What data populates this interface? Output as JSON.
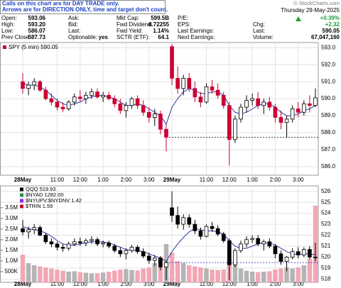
{
  "notice": [
    "Calls on this chart are for DAY TRADE only.",
    "Arrows are for DIRECTION ONLY, time and target don't count."
  ],
  "source": "© StockCharts.com",
  "date": "Thursday 29-May-2025",
  "quote": {
    "rows": [
      [
        {
          "label": "Open:",
          "value": "593.06"
        },
        {
          "label": "Ask:"
        },
        {
          "label": "Mkt Cap:",
          "value": "599.5B"
        },
        {
          "label": "P/E:"
        },
        {
          "value": "+0.39%"
        }
      ],
      [
        {
          "label": "High:",
          "value": "593.20"
        },
        {
          "label": "Bid:"
        },
        {
          "label": "Fwd Dividend:",
          "value": "6.72255"
        },
        {
          "label": "EPS:"
        },
        {
          "label": "Chg:",
          "value": "+2.32"
        }
      ],
      [
        {
          "label": "Low:",
          "value": "586.07"
        },
        {
          "label": "Last:"
        },
        {
          "label": "Fwd Yield:",
          "value": "1.14%"
        },
        {
          "label": "Last Earnings:"
        },
        {
          "label": "Last:",
          "value": "590.05"
        }
      ],
      [
        {
          "label": "Prev Close:",
          "value": "587.73"
        },
        {
          "label": "Optionable:",
          "value": "yes"
        },
        {
          "label": "SCTR (ETF):",
          "value": "64.1"
        },
        {
          "label": "Next Earnings:"
        },
        {
          "label": "Volume:",
          "value": "67,047,160"
        }
      ]
    ]
  },
  "chart_data": [
    {
      "type": "candlestick",
      "legend": "SPY (5 min) 590.05",
      "legend_color": "#cc0033",
      "categories": [
        "28May",
        null,
        null,
        null,
        null,
        null,
        "11:00",
        null,
        null,
        null,
        "12:00",
        null,
        null,
        null,
        "1:00",
        null,
        null,
        null,
        "2:00",
        null,
        null,
        null,
        "3:00",
        null,
        null,
        null,
        "29May",
        null,
        null,
        null,
        null,
        null,
        "11:00",
        null,
        null,
        null,
        "12:00",
        null,
        null,
        null,
        "1:00",
        null,
        null,
        null,
        "2:00",
        null,
        null,
        null,
        "3:00",
        null,
        null,
        null
      ],
      "ylim": [
        585.5,
        593.3
      ],
      "yticks": [
        {
          "value": 586,
          "label": "586.0"
        },
        {
          "value": 587,
          "label": "587.0"
        },
        {
          "value": 588,
          "label": "588.0"
        },
        {
          "value": 589,
          "label": "589.0"
        },
        {
          "value": 590,
          "label": "590.0"
        },
        {
          "value": 591,
          "label": "591.0"
        },
        {
          "value": 592,
          "label": "592.0"
        },
        {
          "value": 593,
          "label": "593.0"
        }
      ],
      "grid": true,
      "up_color": "#000000",
      "down_color": "#cc0033",
      "open": [
        591.0,
        590.6,
        590.8,
        591.0,
        590.5,
        590.0,
        589.8,
        589.5,
        589.4,
        589.8,
        590.1,
        590.0,
        590.2,
        590.4,
        590.1,
        590.2,
        590.0,
        589.7,
        589.3,
        589.6,
        590.0,
        589.6,
        589.2,
        588.9,
        589.1,
        588.2,
        593.06,
        591.2,
        590.6,
        591.2,
        590.6,
        590.1,
        589.8,
        590.7,
        590.5,
        590.2,
        589.6,
        587.6,
        588.8,
        589.5,
        589.9,
        590.0,
        589.6,
        589.8,
        589.5,
        588.9,
        588.6,
        588.8,
        589.4,
        589.2,
        589.7,
        589.6
      ],
      "high": [
        591.5,
        591.0,
        591.2,
        591.1,
        590.7,
        590.3,
        590.0,
        589.8,
        589.9,
        590.3,
        590.5,
        590.4,
        590.6,
        590.6,
        590.4,
        590.4,
        590.2,
        590.0,
        589.8,
        590.1,
        590.2,
        589.9,
        589.5,
        589.4,
        589.3,
        588.5,
        593.2,
        591.9,
        591.4,
        591.5,
        591.0,
        590.4,
        590.9,
        591.1,
        590.9,
        590.4,
        589.8,
        589.0,
        589.7,
        590.2,
        590.3,
        590.4,
        590.0,
        590.1,
        589.7,
        589.3,
        589.0,
        589.6,
        589.8,
        589.9,
        590.2,
        590.6
      ],
      "low": [
        590.3,
        590.2,
        590.5,
        590.4,
        589.9,
        589.6,
        589.3,
        589.2,
        589.3,
        589.6,
        589.8,
        589.7,
        590.0,
        590.0,
        589.8,
        589.9,
        589.5,
        589.1,
        588.9,
        589.4,
        589.4,
        589.0,
        588.6,
        588.4,
        587.9,
        586.9,
        590.8,
        590.3,
        590.2,
        590.4,
        589.8,
        589.5,
        589.7,
        590.3,
        590.0,
        589.4,
        586.07,
        587.4,
        588.6,
        589.2,
        589.6,
        589.4,
        589.1,
        589.3,
        588.6,
        588.2,
        587.7,
        588.6,
        588.9,
        589.0,
        589.2,
        589.5
      ],
      "close": [
        590.6,
        590.8,
        591.0,
        590.5,
        590.0,
        589.8,
        589.5,
        589.4,
        589.8,
        590.1,
        590.0,
        590.2,
        590.4,
        590.1,
        590.2,
        590.0,
        589.7,
        589.3,
        589.6,
        590.0,
        589.6,
        589.2,
        588.9,
        589.1,
        588.2,
        587.73,
        591.2,
        590.6,
        591.2,
        590.6,
        590.1,
        589.8,
        590.7,
        590.5,
        590.2,
        589.6,
        587.6,
        588.8,
        589.5,
        589.9,
        590.0,
        589.6,
        589.8,
        589.5,
        588.9,
        588.6,
        588.8,
        589.4,
        589.2,
        589.7,
        589.6,
        590.05
      ],
      "ma": {
        "color": "#2b3aa8",
        "values": [
          590.9,
          590.8,
          590.8,
          590.7,
          590.5,
          590.2,
          589.9,
          589.7,
          589.6,
          589.7,
          589.8,
          590.0,
          590.1,
          590.2,
          590.2,
          590.1,
          590.0,
          589.8,
          589.6,
          589.6,
          589.7,
          589.6,
          589.4,
          589.2,
          589.0,
          588.5,
          589.5,
          590.0,
          590.4,
          590.6,
          590.5,
          590.3,
          590.3,
          590.4,
          590.4,
          590.2,
          589.6,
          589.2,
          589.1,
          589.2,
          589.4,
          589.6,
          589.7,
          589.7,
          589.5,
          589.2,
          589.0,
          589.0,
          589.1,
          589.3,
          589.4,
          589.6
        ]
      }
    },
    {
      "type": "candlestick-volume",
      "legend": [
        "QQQ 519.93",
        "$NYAD 1282.00",
        "$NYUPV:$NYDNV 1.42",
        "$TRIN 1.59"
      ],
      "legend_colors": [
        "#000000",
        "#2e8b57",
        "#8a2be2",
        "#cc0033"
      ],
      "categories": [
        "28May",
        null,
        null,
        null,
        null,
        null,
        "11:00",
        null,
        null,
        null,
        "12:00",
        null,
        null,
        null,
        "1:00",
        null,
        null,
        null,
        "2:00",
        null,
        null,
        null,
        "3:00",
        null,
        null,
        null,
        "29May",
        null,
        null,
        null,
        null,
        null,
        "11:00",
        null,
        null,
        null,
        "12:00",
        null,
        null,
        null,
        "1:00",
        null,
        null,
        null,
        "2:00",
        null,
        null,
        null,
        "3:00",
        null,
        null,
        null
      ],
      "ylim": [
        0,
        4530000
      ],
      "yticks": [
        {
          "value": 500000,
          "label": "500K"
        },
        {
          "value": 1000000,
          "label": "1.0M"
        },
        {
          "value": 1500000,
          "label": "1.5M"
        },
        {
          "value": 2000000,
          "label": "2.0M"
        },
        {
          "value": 2500000,
          "label": "2.5M"
        },
        {
          "value": 3000000,
          "label": "3.0M"
        },
        {
          "value": 3500000,
          "label": "3.5M"
        }
      ],
      "y2lim": [
        517.7,
        526.5
      ],
      "y2ticks": [
        518,
        519,
        520,
        521,
        522,
        523,
        524,
        525,
        526
      ],
      "grid": true,
      "volume": {
        "up_color": "#b4b4b4",
        "down_color": "#f2a7b5",
        "values": [
          1300000,
          900000,
          800000,
          750000,
          700000,
          650000,
          600000,
          550000,
          500000,
          520000,
          480000,
          450000,
          420000,
          430000,
          460000,
          500000,
          550000,
          600000,
          620000,
          580000,
          560000,
          650000,
          700000,
          900000,
          1200000,
          1800000,
          1400000,
          1000000,
          900000,
          800000,
          750000,
          700000,
          650000,
          600000,
          580000,
          600000,
          1100000,
          800000,
          650000,
          550000,
          500000,
          480000,
          500000,
          520000,
          600000,
          650000,
          700000,
          650000,
          700000,
          800000,
          1100000,
          3600000
        ]
      },
      "price": {
        "axis": "y2",
        "up_color": "#000000",
        "down_color": "#000000",
        "open": [
          522.6,
          522.3,
          522.5,
          522.7,
          522.0,
          521.4,
          521.2,
          520.9,
          520.8,
          521.2,
          521.4,
          521.3,
          521.5,
          521.6,
          521.2,
          521.3,
          521.0,
          520.6,
          520.3,
          520.6,
          520.9,
          520.5,
          520.1,
          519.7,
          519.9,
          519.1,
          524.5,
          523.8,
          523.0,
          523.6,
          523.0,
          522.4,
          521.9,
          522.8,
          522.6,
          522.1,
          521.5,
          519.3,
          520.6,
          521.2,
          521.6,
          521.7,
          521.2,
          521.4,
          521.0,
          520.3,
          519.6,
          520.0,
          520.5,
          520.2,
          520.7,
          520.0
        ],
        "high": [
          523.4,
          522.8,
          523.0,
          522.9,
          522.2,
          521.7,
          521.4,
          521.2,
          521.4,
          521.7,
          521.8,
          521.7,
          521.9,
          521.8,
          521.5,
          521.5,
          521.2,
          520.9,
          520.8,
          521.1,
          521.1,
          520.8,
          520.4,
          520.2,
          520.1,
          519.6,
          526.0,
          524.6,
          523.9,
          523.9,
          523.4,
          522.7,
          523.0,
          523.2,
          522.9,
          522.3,
          521.7,
          520.8,
          521.5,
          521.9,
          522.0,
          522.0,
          521.6,
          521.7,
          521.2,
          520.6,
          520.1,
          520.8,
          520.9,
          520.9,
          521.0,
          521.3
        ],
        "low": [
          522.0,
          521.7,
          522.1,
          521.9,
          521.2,
          520.9,
          520.6,
          520.5,
          520.6,
          521.0,
          521.0,
          521.0,
          521.2,
          521.0,
          520.9,
          520.8,
          520.4,
          520.0,
          519.8,
          520.4,
          520.3,
          519.9,
          519.4,
          519.2,
          518.8,
          517.9,
          523.2,
          522.6,
          522.5,
          522.7,
          522.1,
          521.6,
          521.8,
          522.3,
          521.9,
          521.3,
          517.9,
          519.1,
          520.4,
          520.9,
          521.3,
          521.0,
          520.6,
          520.8,
          519.9,
          519.3,
          518.7,
          519.8,
          519.9,
          520.0,
          519.8,
          519.6
        ],
        "close": [
          522.3,
          522.5,
          522.7,
          522.0,
          521.4,
          521.2,
          520.9,
          520.8,
          521.2,
          521.4,
          521.3,
          521.5,
          521.6,
          521.2,
          521.3,
          521.0,
          520.6,
          520.3,
          520.6,
          520.9,
          520.5,
          520.1,
          519.7,
          519.9,
          519.1,
          519.5,
          523.8,
          523.0,
          523.6,
          523.0,
          522.4,
          521.9,
          522.8,
          522.6,
          522.1,
          521.5,
          519.3,
          520.6,
          521.2,
          521.6,
          521.7,
          521.2,
          521.4,
          521.0,
          520.3,
          519.6,
          520.0,
          520.5,
          520.2,
          520.7,
          520.0,
          519.93
        ]
      },
      "ma": {
        "color": "#2b3aa8",
        "values": [
          522.8,
          522.6,
          522.5,
          522.4,
          522.2,
          521.9,
          521.5,
          521.2,
          521.1,
          521.1,
          521.2,
          521.3,
          521.4,
          521.4,
          521.4,
          521.3,
          521.1,
          520.9,
          520.7,
          520.6,
          520.6,
          520.5,
          520.3,
          520.1,
          519.9,
          519.6,
          520.5,
          521.2,
          521.8,
          522.3,
          522.6,
          522.5,
          522.4,
          522.4,
          522.3,
          522.1,
          521.5,
          521.0,
          520.8,
          520.8,
          521.0,
          521.2,
          521.3,
          521.3,
          521.1,
          520.8,
          520.5,
          520.3,
          520.2,
          520.3,
          520.3,
          520.2
        ]
      }
    }
  ]
}
